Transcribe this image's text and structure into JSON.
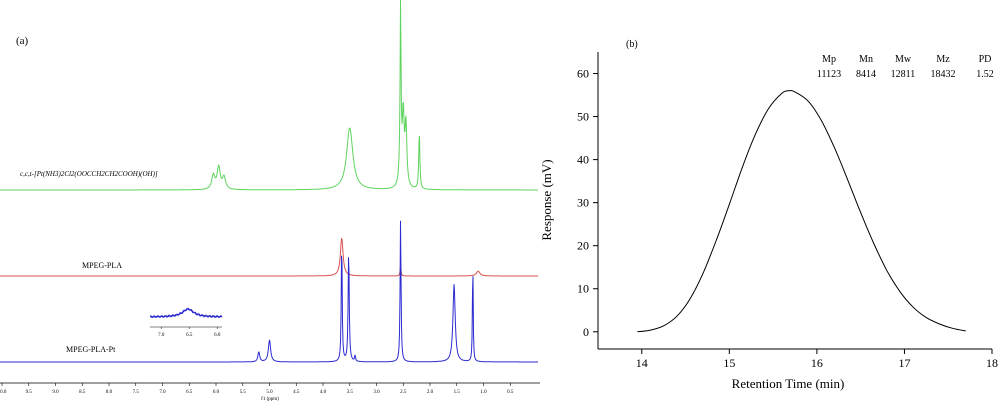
{
  "panel_a": {
    "label": "(a)",
    "axis_unit": "f1 (ppm)",
    "tick_labels": [
      "10.0",
      "9.5",
      "9.0",
      "8.5",
      "8.0",
      "7.5",
      "7.0",
      "6.5",
      "6.0",
      "5.5",
      "5.0",
      "4.5",
      "4.0",
      "3.5",
      "3.0",
      "2.5",
      "2.0",
      "1.5",
      "1.0",
      "0.5"
    ],
    "inset_tick_labels": [
      "7.0",
      "6.5",
      "6.0"
    ],
    "colors": {
      "top": "#5fd35f",
      "middle": "#d9534f",
      "bottom": "#2b2bd1",
      "inset": "#2b2bd1"
    }
  },
  "panel_b": {
    "label": "(b)",
    "stats_headers": [
      "Mp",
      "Mn",
      "Mw",
      "Mz",
      "PD"
    ],
    "stats_values": [
      "11123",
      "8414",
      "12811",
      "18432",
      "1.52"
    ]
  },
  "chart_data": [
    {
      "type": "line",
      "title": "",
      "xlabel": "f1 (ppm)",
      "ylabel": "",
      "xlim": [
        10.0,
        0.0
      ],
      "x_reversed": true,
      "series": [
        {
          "name": "c,c,t-[Pt(NH3)2Cl2(OOCCH2CH2COOH)(OH)]",
          "baseline": 0,
          "peaks": [
            {
              "x": 6.05,
              "h": 0.35,
              "w": 0.035
            },
            {
              "x": 5.95,
              "h": 0.55,
              "w": 0.035
            },
            {
              "x": 5.85,
              "h": 0.3,
              "w": 0.035
            },
            {
              "x": 3.5,
              "h": 1.55,
              "w": 0.07
            },
            {
              "x": 2.55,
              "h": 1.6,
              "w": 0.02
            },
            {
              "x": 2.5,
              "h": 1.75,
              "w": 0.02
            },
            {
              "x": 2.45,
              "h": 1.55,
              "w": 0.02
            },
            {
              "x": 2.2,
              "h": 1.45,
              "w": 0.012
            },
            {
              "x": 2.55,
              "h": 4.5,
              "w": 0.006
            }
          ]
        },
        {
          "name": "MPEG-PLA",
          "baseline": 0,
          "peaks": [
            {
              "x": 3.65,
              "h": 0.95,
              "w": 0.03
            },
            {
              "x": 2.55,
              "h": 0.25,
              "w": 0.01
            },
            {
              "x": 1.1,
              "h": 0.12,
              "w": 0.04
            }
          ]
        },
        {
          "name": "MPEG-PLA-Pt",
          "baseline": 0,
          "peaks": [
            {
              "x": 5.2,
              "h": 0.25,
              "w": 0.02
            },
            {
              "x": 5.0,
              "h": 0.55,
              "w": 0.025
            },
            {
              "x": 3.65,
              "h": 3.1,
              "w": 0.01
            },
            {
              "x": 3.52,
              "h": 2.8,
              "w": 0.012
            },
            {
              "x": 3.4,
              "h": 0.15,
              "w": 0.01
            },
            {
              "x": 2.55,
              "h": 3.6,
              "w": 0.01
            },
            {
              "x": 1.55,
              "h": 1.95,
              "w": 0.025
            },
            {
              "x": 1.2,
              "h": 2.6,
              "w": 0.008
            }
          ]
        }
      ]
    },
    {
      "type": "line",
      "title": "",
      "xlabel": "Retention Time (min)",
      "ylabel": "Response (mV)",
      "xlim": [
        13.5,
        18
      ],
      "ylim": [
        -4,
        65
      ],
      "x_ticks": [
        14,
        15,
        16,
        17,
        18
      ],
      "y_ticks": [
        0,
        10,
        20,
        30,
        40,
        50,
        60
      ],
      "grid": false,
      "series": [
        {
          "name": "",
          "x": [
            13.95,
            14.1,
            14.25,
            14.4,
            14.55,
            14.7,
            14.85,
            15.0,
            15.15,
            15.3,
            15.45,
            15.6,
            15.68,
            15.75,
            15.9,
            16.05,
            16.2,
            16.35,
            16.5,
            16.65,
            16.8,
            16.95,
            17.1,
            17.25,
            17.4,
            17.55,
            17.7
          ],
          "y": [
            0.0,
            0.4,
            1.4,
            3.6,
            7.6,
            13.6,
            21.2,
            29.6,
            38.3,
            46.0,
            51.9,
            55.4,
            56.0,
            55.7,
            53.6,
            49.1,
            42.8,
            35.4,
            27.7,
            20.5,
            14.2,
            9.3,
            5.7,
            3.3,
            1.8,
            0.8,
            0.2
          ]
        }
      ]
    }
  ]
}
